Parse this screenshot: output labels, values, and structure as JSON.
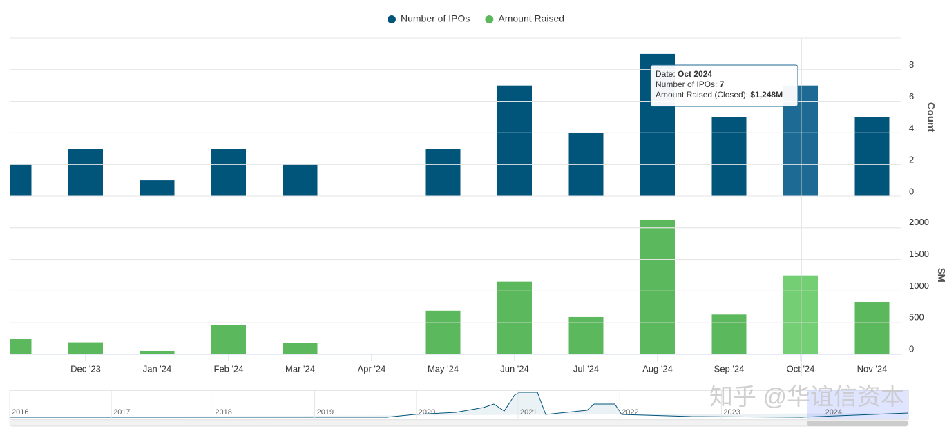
{
  "chart_data": [
    {
      "type": "bar",
      "ylabel": "Count",
      "categories": [
        null,
        "Dec '23",
        "Jan '24",
        "Feb '24",
        "Mar '24",
        "Apr '24",
        "May '24",
        "Jun '24",
        "Jul '24",
        "Aug '24",
        "Sep '24",
        "Oct '24",
        "Nov '24"
      ],
      "series": [
        {
          "name": "Number of IPOs",
          "color": "#01547a",
          "hover_color": "#1d6a94",
          "values": [
            2,
            3,
            1,
            3,
            2,
            0,
            3,
            7,
            4,
            9,
            5,
            7,
            5
          ]
        }
      ],
      "ylim": [
        0,
        10
      ],
      "yticks": [
        0,
        2,
        4,
        6,
        8
      ],
      "grid": true,
      "hovered": 11
    },
    {
      "type": "bar",
      "ylabel": "$M",
      "categories": [
        null,
        "Dec '23",
        "Jan '24",
        "Feb '24",
        "Mar '24",
        "Apr '24",
        "May '24",
        "Jun '24",
        "Jul '24",
        "Aug '24",
        "Sep '24",
        "Oct '24",
        "Nov '24"
      ],
      "series": [
        {
          "name": "Amount Raised",
          "color": "#5cb85c",
          "hover_color": "#74cf74",
          "values": [
            240,
            190,
            55,
            460,
            180,
            0,
            690,
            1150,
            590,
            2120,
            630,
            1248,
            830
          ]
        }
      ],
      "ylim": [
        0,
        2500
      ],
      "yticks": [
        0,
        500,
        1000,
        1500,
        2000
      ],
      "grid": true,
      "hovered": 11
    }
  ],
  "tooltip": {
    "rows": [
      [
        "Date: ",
        "Oct 2024"
      ],
      [
        "Number of IPOs: ",
        "7"
      ],
      [
        "Amount Raised (Closed): ",
        "$1,248M"
      ]
    ]
  },
  "navigator": {
    "years": [
      "2016",
      "2017",
      "2018",
      "2019",
      "2020",
      "2021",
      "2022",
      "2023",
      "2024"
    ]
  },
  "watermark": "知乎 @华谊信资本"
}
